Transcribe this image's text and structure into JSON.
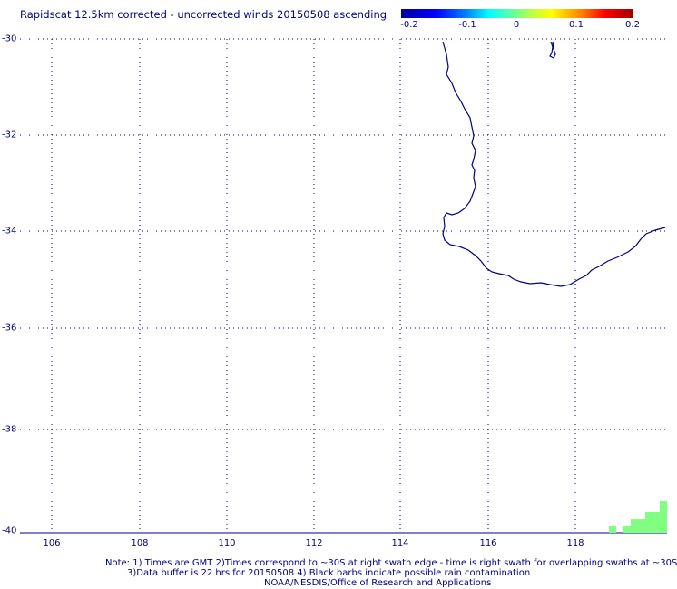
{
  "title": "Rapidscat 12.5km corrected - uncorrected winds 20150508 ascending",
  "colorbar": {
    "labels": [
      "-0.2",
      "-0.1",
      "0",
      "0.1",
      "0.2"
    ],
    "min": -0.2,
    "max": 0.2
  },
  "map": {
    "lat_labels": [
      "-30",
      "-32",
      "-34",
      "-36",
      "-38",
      "-40"
    ],
    "lon_labels": [
      "106",
      "108",
      "110",
      "112",
      "114",
      "116",
      "118"
    ],
    "lat_range": [
      -40,
      -30
    ],
    "lon_range": [
      105,
      120
    ],
    "grid": "dotted",
    "coastline_color": "#000080",
    "wind_cell_color": "#80ff80"
  },
  "notes": {
    "line1": "Note: 1) Times are GMT 2)Times correspond to ~30S at right swath edge - time is right swath for overlapping swaths at ~30S",
    "line2": "3)Data buffer is 22 hrs for 20150508 4) Black barbs indicate possible rain contamination",
    "line3": "NOAA/NESDIS/Office of Research and Applications"
  }
}
